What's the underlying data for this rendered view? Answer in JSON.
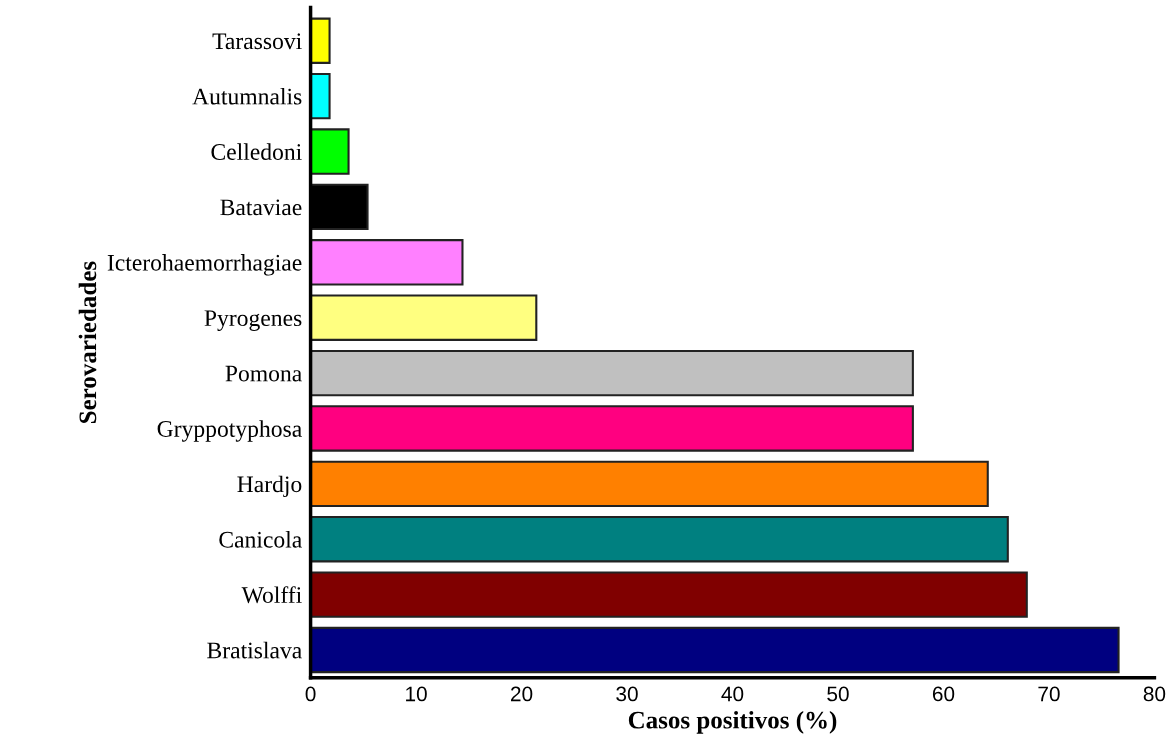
{
  "chart_data": {
    "type": "bar",
    "orientation": "horizontal",
    "xlabel": "Casos positivos (%)",
    "ylabel": "Serovariedades",
    "categories": [
      "Tarassovi",
      "Autumnalis",
      "Celledoni",
      "Bataviae",
      "Icterohaemorrhagiae",
      "Pyrogenes",
      "Pomona",
      "Gryppotyphosa",
      "Hardjo",
      "Canicola",
      "Wolffi",
      "Bratislava"
    ],
    "values": [
      1.8,
      1.8,
      3.6,
      5.4,
      14.4,
      21.4,
      57.1,
      57.1,
      64.2,
      66.1,
      67.9,
      76.6
    ],
    "colors": [
      "#ffff00",
      "#00ffff",
      "#00ff00",
      "#000000",
      "#ff80ff",
      "#ffff80",
      "#c0c0c0",
      "#ff0080",
      "#ff8000",
      "#008080",
      "#800000",
      "#000080"
    ],
    "xlim": [
      0,
      80
    ],
    "xticks": [
      0,
      10,
      20,
      30,
      40,
      50,
      60,
      70,
      80
    ],
    "grid": false
  }
}
